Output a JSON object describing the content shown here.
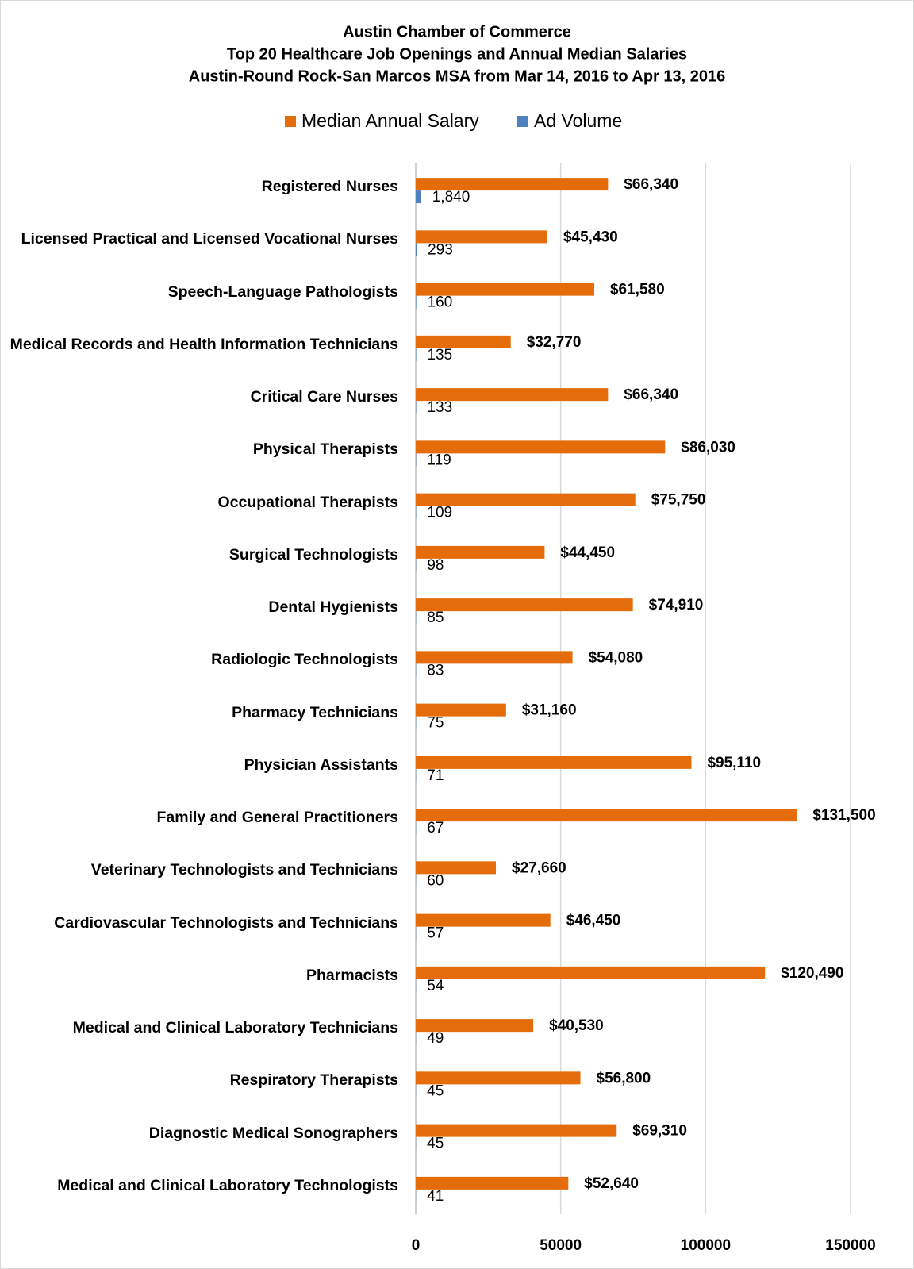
{
  "chart_data": {
    "type": "bar",
    "orientation": "horizontal",
    "title": [
      "Austin Chamber of Commerce",
      "Top 20 Healthcare Job Openings and Annual Median Salaries",
      "Austin-Round Rock-San Marcos MSA from Mar 14, 2016 to Apr 13, 2016"
    ],
    "categories": [
      "Registered Nurses",
      "Licensed Practical and Licensed Vocational Nurses",
      "Speech-Language Pathologists",
      "Medical Records and Health Information Technicians",
      "Critical Care Nurses",
      "Physical Therapists",
      "Occupational Therapists",
      "Surgical Technologists",
      "Dental Hygienists",
      "Radiologic Technologists",
      "Pharmacy Technicians",
      "Physician Assistants",
      "Family and General Practitioners",
      "Veterinary Technologists and Technicians",
      "Cardiovascular Technologists and Technicians",
      "Pharmacists",
      "Medical and Clinical Laboratory Technicians",
      "Respiratory Therapists",
      "Diagnostic Medical Sonographers",
      "Medical and Clinical Laboratory Technologists"
    ],
    "series": [
      {
        "name": "Median Annual Salary",
        "color": "#e46c0a",
        "values": [
          66340,
          45430,
          61580,
          32770,
          66340,
          86030,
          75750,
          44450,
          74910,
          54080,
          31160,
          95110,
          131500,
          27660,
          46450,
          120490,
          40530,
          56800,
          69310,
          52640
        ],
        "value_labels": [
          "$66,340",
          "$45,430",
          "$61,580",
          "$32,770",
          "$66,340",
          "$86,030",
          "$75,750",
          "$44,450",
          "$74,910",
          "$54,080",
          "$31,160",
          "$95,110",
          "$131,500",
          "$27,660",
          "$46,450",
          "$120,490",
          "$40,530",
          "$56,800",
          "$69,310",
          "$52,640"
        ]
      },
      {
        "name": "Ad Volume",
        "color": "#4f81bd",
        "values": [
          1840,
          293,
          160,
          135,
          133,
          119,
          109,
          98,
          85,
          83,
          75,
          71,
          67,
          60,
          57,
          54,
          49,
          45,
          45,
          41
        ],
        "value_labels": [
          "1,840",
          "293",
          "160",
          "135",
          "133",
          "119",
          "109",
          "98",
          "85",
          "83",
          "75",
          "71",
          "67",
          "60",
          "57",
          "54",
          "49",
          "45",
          "45",
          "41"
        ]
      }
    ],
    "xlim": [
      0,
      150000
    ],
    "xticks": [
      0,
      50000,
      100000,
      150000
    ],
    "grid": true,
    "legend": "top"
  }
}
